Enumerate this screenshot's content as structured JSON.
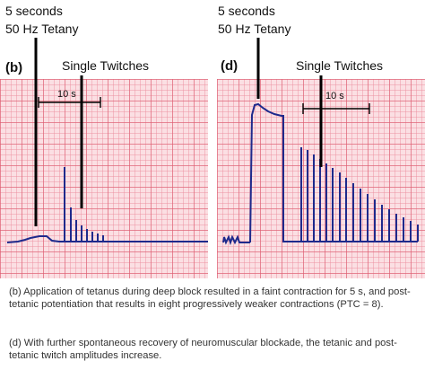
{
  "panels": [
    {
      "id": "b",
      "label": "(b)",
      "tetany_line1": "5 seconds",
      "tetany_line2": "50 Hz Tetany",
      "single_twitches": "Single Twitches",
      "scale": "10 s"
    },
    {
      "id": "d",
      "label": "(d)",
      "tetany_line1": "5 seconds",
      "tetany_line2": "50 Hz Tetany",
      "single_twitches": "Single Twitches",
      "scale": "10 s"
    }
  ],
  "caption": {
    "b": "(b) Application of tetanus during deep block resulted in a faint contraction for 5 s, and post-tetanic potentiation that results in eight progressively weaker contractions (PTC = 8).",
    "d": "(d) With further spontaneous recovery of neuromuscular blockade, the tetanic and post-tetanic twitch amplitudes increase."
  },
  "colors": {
    "trace": "#1e2a8c",
    "grid_background": "#fbdfe3",
    "grid_line": "#dc5a6e",
    "annotation": "#000000"
  }
}
